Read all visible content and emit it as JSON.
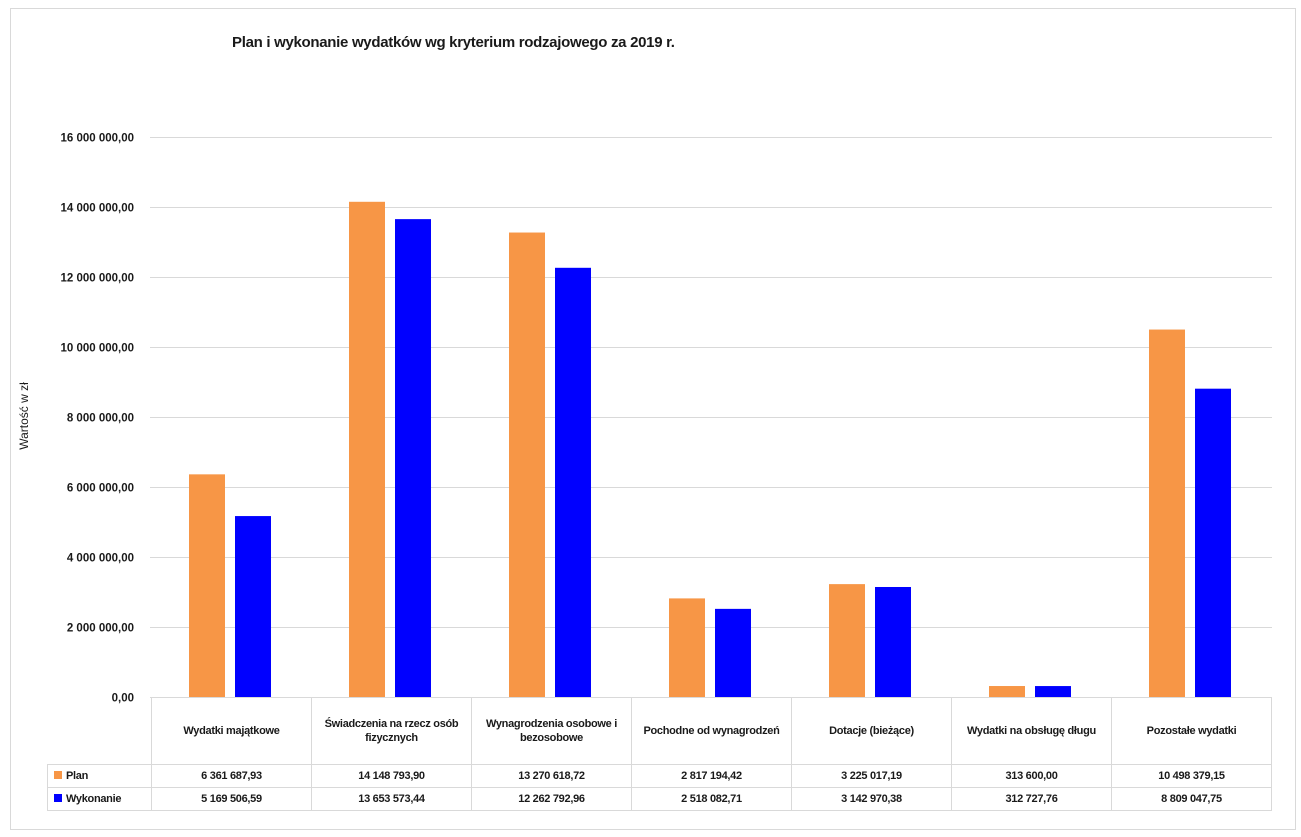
{
  "chart_data": {
    "type": "bar",
    "title": "Plan i wykonanie wydatków wg kryterium rodzajowego za 2019 r.",
    "ylabel": "Wartość w zł",
    "xlabel": "",
    "ylim": [
      0,
      16000000
    ],
    "ytick_labels": [
      "0,00",
      "2 000 000,00",
      "4 000 000,00",
      "6 000 000,00",
      "8 000 000,00",
      "10 000 000,00",
      "12 000 000,00",
      "14 000 000,00",
      "16 000 000,00"
    ],
    "grid": true,
    "legend": "data-table",
    "categories": [
      "Wydatki majątkowe",
      "Świadczenia na rzecz osób fizycznych",
      "Wynagrodzenia osobowe i bezosobowe",
      "Pochodne od wynagrodzeń",
      "Dotacje (bieżące)",
      "Wydatki na obsługę długu",
      "Pozostałe wydatki"
    ],
    "series": [
      {
        "name": "Plan",
        "color": "#f79646",
        "values": [
          6361687.93,
          14148793.9,
          13270618.72,
          2817194.42,
          3225017.19,
          313600.0,
          10498379.15
        ],
        "labels": [
          "6 361 687,93",
          "14 148 793,90",
          "13 270 618,72",
          "2 817 194,42",
          "3 225 017,19",
          "313 600,00",
          "10 498 379,15"
        ]
      },
      {
        "name": "Wykonanie",
        "color": "#0000ff",
        "values": [
          5169506.59,
          13653573.44,
          12262792.96,
          2518082.71,
          3142970.38,
          312727.76,
          8809047.75
        ],
        "labels": [
          "5 169 506,59",
          "13 653 573,44",
          "12 262 792,96",
          "2 518 082,71",
          "3 142 970,38",
          "312 727,76",
          "8 809 047,75"
        ]
      }
    ]
  },
  "colors": {
    "gridline": "#d9d9d9",
    "plan": "#f79646",
    "wykonanie": "#0000ff"
  }
}
